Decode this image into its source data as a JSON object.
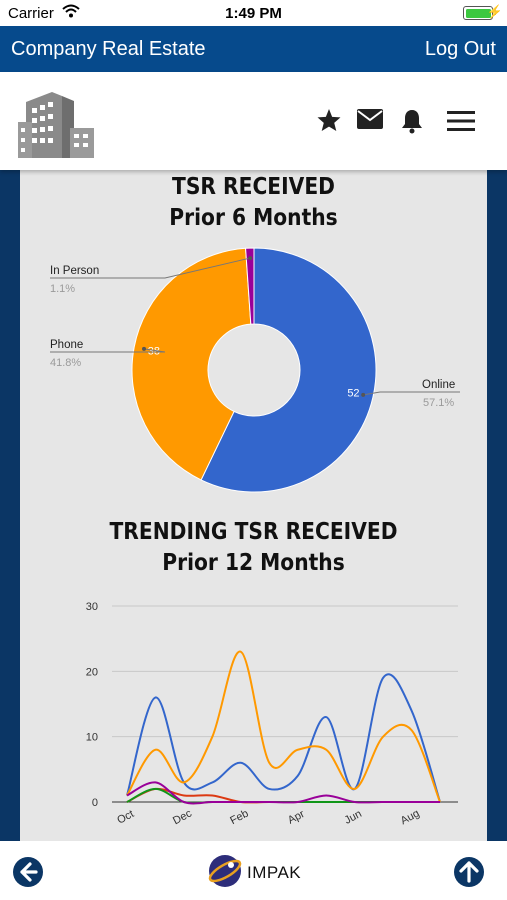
{
  "status_bar": {
    "carrier": "Carrier",
    "time": "1:49 PM",
    "battery_level": 1.0
  },
  "header": {
    "title": "Company Real Estate",
    "logout_label": "Log Out"
  },
  "toolbar": {
    "icons": [
      "building-logo",
      "star-icon",
      "mail-icon",
      "bell-icon",
      "menu-icon"
    ]
  },
  "donut_chart": {
    "title_line1": "TSR RECEIVED",
    "title_line2": "Prior 6 Months"
  },
  "trend_chart": {
    "title_line1": "TRENDING TSR RECEIVED",
    "title_line2": "Prior 12 Months"
  },
  "chart_data": [
    {
      "type": "pie",
      "title": "TSR RECEIVED Prior 6 Months",
      "donut": true,
      "slices": [
        {
          "label": "Online",
          "value": 52,
          "percent": "57.1%",
          "color": "#3366cc"
        },
        {
          "label": "Phone",
          "value": 38,
          "percent": "41.8%",
          "color": "#ff9900"
        },
        {
          "label": "In Person",
          "value": 1,
          "percent": "1.1%",
          "color": "#990099"
        }
      ],
      "value_labels": [
        "52",
        "38"
      ]
    },
    {
      "type": "line",
      "title": "TRENDING TSR RECEIVED Prior 12 Months",
      "x_tick_labels": [
        "Oct",
        "Dec",
        "Feb",
        "Apr",
        "Jun",
        "Aug"
      ],
      "y_ticks": [
        "0",
        "10",
        "20",
        "30"
      ],
      "ylim": [
        0,
        30
      ],
      "grid": true,
      "series": [
        {
          "color": "#3366cc",
          "values": [
            1,
            16,
            3,
            3,
            6,
            2,
            4,
            13,
            2,
            19,
            14,
            0
          ]
        },
        {
          "color": "#ff9900",
          "values": [
            1,
            8,
            3,
            10,
            23,
            6,
            8,
            8,
            2,
            10,
            11,
            0
          ]
        },
        {
          "color": "#dc3912",
          "values": [
            0,
            2,
            1,
            1,
            0,
            0,
            0,
            0,
            0,
            0,
            0,
            0
          ]
        },
        {
          "color": "#109618",
          "values": [
            0,
            2,
            0,
            0,
            0,
            0,
            0,
            0,
            0,
            0,
            0,
            0
          ]
        },
        {
          "color": "#990099",
          "values": [
            1,
            3,
            0,
            0,
            0,
            0,
            0,
            1,
            0,
            0,
            0,
            0
          ]
        }
      ]
    }
  ],
  "bottom_bar": {
    "brand": "IMPAK"
  }
}
